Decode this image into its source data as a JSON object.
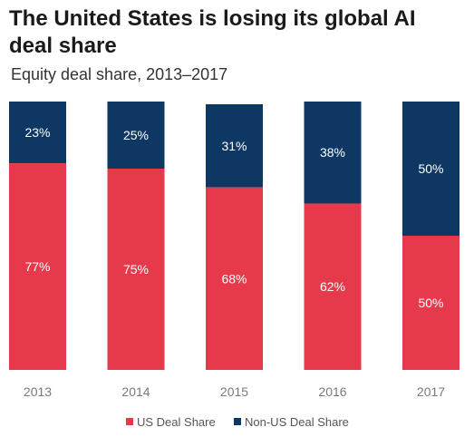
{
  "chart_data": {
    "type": "bar",
    "stacked": true,
    "percent": true,
    "title": "The United States is losing its global AI deal share",
    "subtitle": "Equity deal share, 2013–2017",
    "categories": [
      "2013",
      "2014",
      "2015",
      "2016",
      "2017"
    ],
    "series": [
      {
        "name": "US Deal Share",
        "values": [
          77,
          75,
          68,
          62,
          50
        ],
        "color": "#e63a4c"
      },
      {
        "name": "Non-US Deal Share",
        "values": [
          23,
          25,
          31,
          38,
          50
        ],
        "color": "#0f3764"
      }
    ],
    "data_labels": {
      "US Deal Share": [
        "77%",
        "75%",
        "68%",
        "62%",
        "50%"
      ],
      "Non-US Deal Share": [
        "23%",
        "25%",
        "31%",
        "38%",
        "50%"
      ]
    },
    "ylim": [
      0,
      100
    ],
    "grid": false,
    "legend_position": "bottom"
  }
}
